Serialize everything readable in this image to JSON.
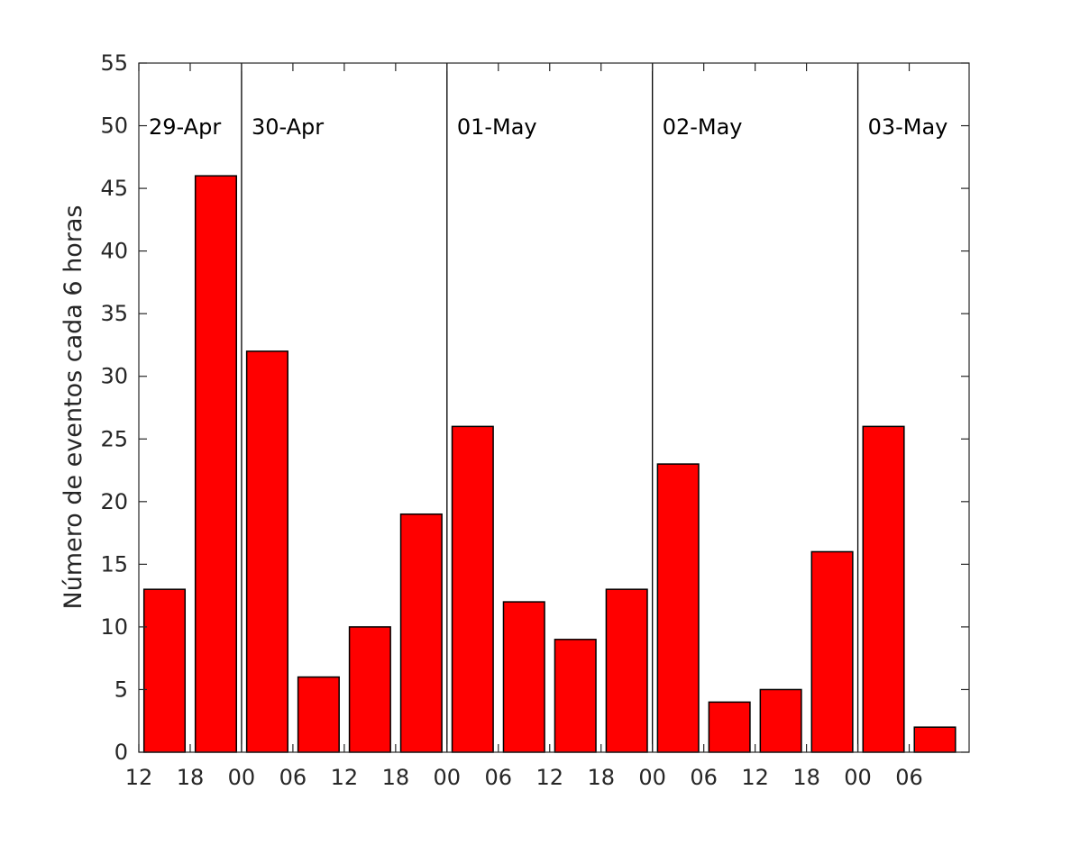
{
  "chart_data": {
    "type": "bar",
    "ylabel": "Número de eventos cada 6 horas",
    "ylim": [
      0,
      55
    ],
    "y_ticks": [
      0,
      5,
      10,
      15,
      20,
      25,
      30,
      35,
      40,
      45,
      50,
      55
    ],
    "x_ticks": [
      {
        "hour": 12,
        "label": "12"
      },
      {
        "hour": 18,
        "label": "18"
      },
      {
        "hour": 24,
        "label": "00"
      },
      {
        "hour": 30,
        "label": "06"
      },
      {
        "hour": 36,
        "label": "12"
      },
      {
        "hour": 42,
        "label": "18"
      },
      {
        "hour": 48,
        "label": "00"
      },
      {
        "hour": 54,
        "label": "06"
      },
      {
        "hour": 60,
        "label": "12"
      },
      {
        "hour": 66,
        "label": "18"
      },
      {
        "hour": 72,
        "label": "00"
      },
      {
        "hour": 78,
        "label": "06"
      },
      {
        "hour": 84,
        "label": "12"
      },
      {
        "hour": 90,
        "label": "18"
      },
      {
        "hour": 96,
        "label": "00"
      },
      {
        "hour": 102,
        "label": "06"
      }
    ],
    "day_markers": [
      {
        "hour": 24,
        "label": "30-Apr"
      },
      {
        "hour": 48,
        "label": "01-May"
      },
      {
        "hour": 72,
        "label": "02-May"
      },
      {
        "hour": 96,
        "label": "03-May"
      }
    ],
    "first_day_label": "29-Apr",
    "xlim_hours": [
      12,
      109
    ],
    "bars": [
      {
        "start_hour": 12,
        "value": 13
      },
      {
        "start_hour": 18,
        "value": 46
      },
      {
        "start_hour": 24,
        "value": 32
      },
      {
        "start_hour": 30,
        "value": 6
      },
      {
        "start_hour": 36,
        "value": 10
      },
      {
        "start_hour": 42,
        "value": 19
      },
      {
        "start_hour": 48,
        "value": 26
      },
      {
        "start_hour": 54,
        "value": 12
      },
      {
        "start_hour": 60,
        "value": 9
      },
      {
        "start_hour": 66,
        "value": 13
      },
      {
        "start_hour": 72,
        "value": 23
      },
      {
        "start_hour": 78,
        "value": 4
      },
      {
        "start_hour": 84,
        "value": 5
      },
      {
        "start_hour": 90,
        "value": 16
      },
      {
        "start_hour": 96,
        "value": 26
      },
      {
        "start_hour": 102,
        "value": 2
      }
    ],
    "bar_color": "#ff0000",
    "grid": false
  }
}
